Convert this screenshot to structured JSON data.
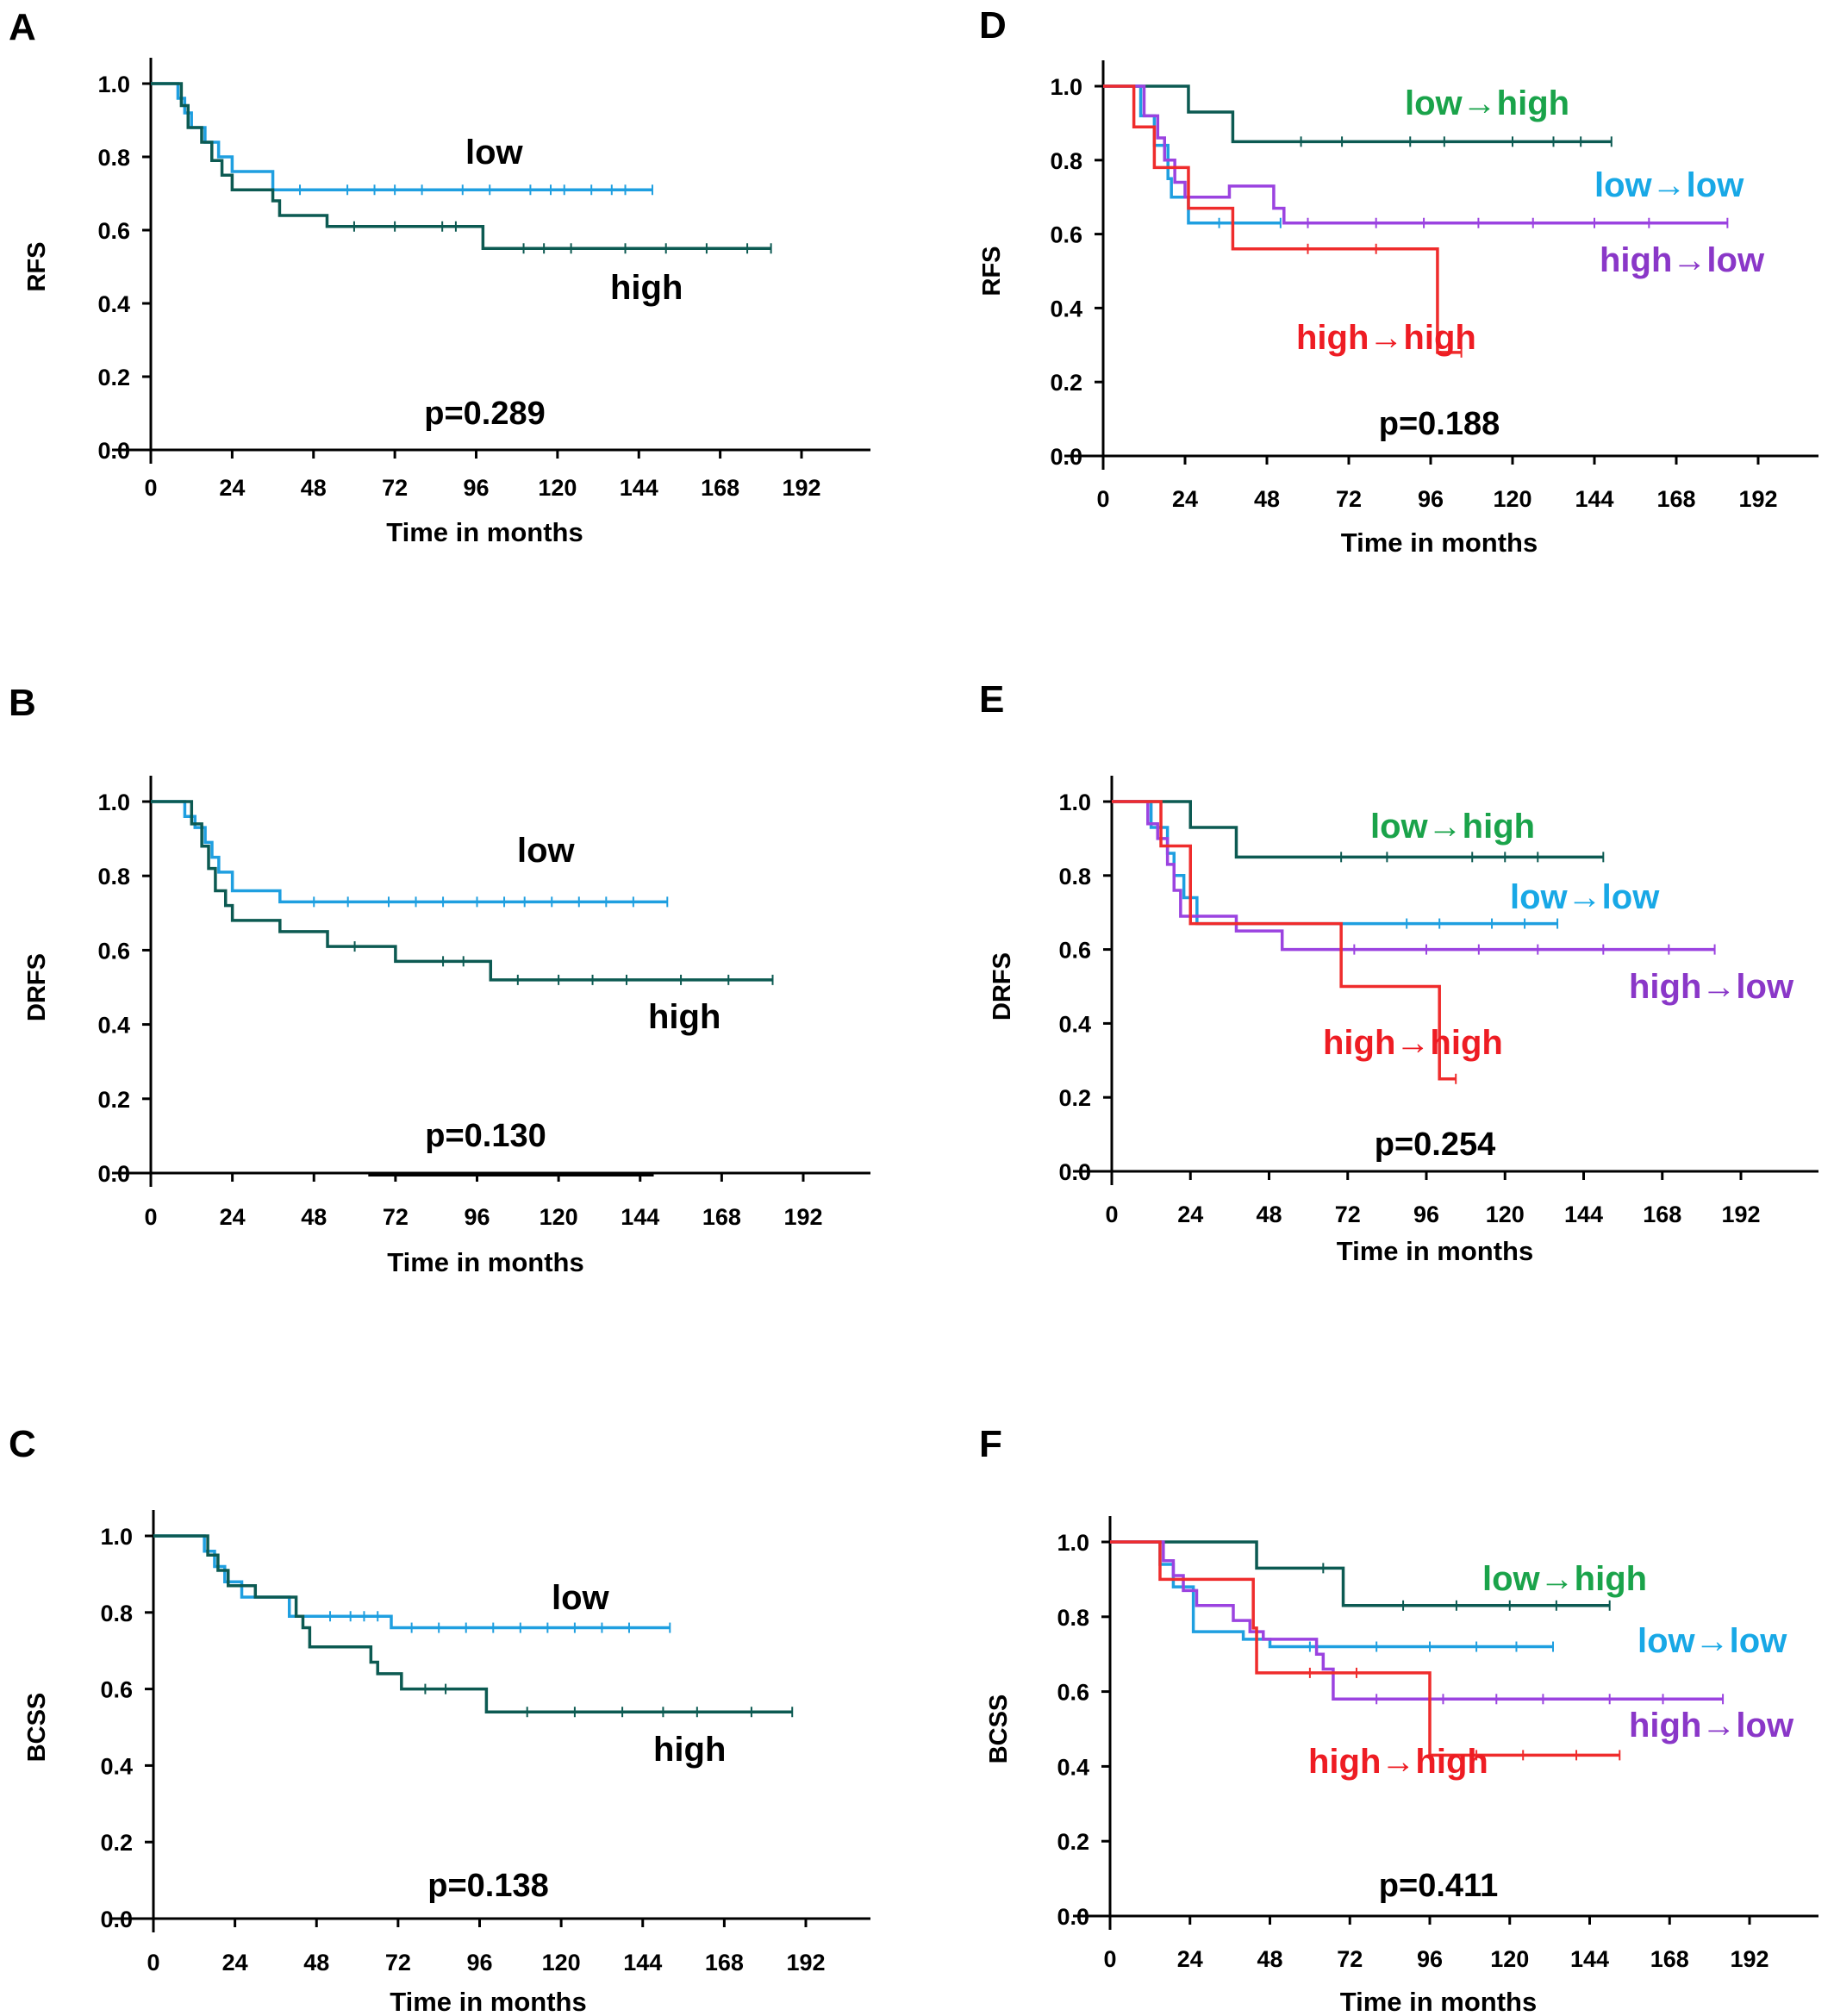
{
  "colors": {
    "dark_green": "#0c5a52",
    "blue": "#1f9fe0",
    "purple": "#9b43e0",
    "red": "#ef2c2c",
    "label_green": "#1aa34a",
    "label_blue": "#18a8e6",
    "label_purple": "#8a37c8",
    "label_red": "#ee1c23",
    "axis": "#000000"
  },
  "chart_data": [
    {
      "type": "line",
      "panel": "A",
      "xlabel": "Time in months",
      "ylabel": "RFS",
      "p_value": "p=0.289",
      "xlim": [
        0,
        192
      ],
      "ylim": [
        0,
        1
      ],
      "x_ticks": [
        "0",
        "24",
        "48",
        "72",
        "96",
        "120",
        "144",
        "168",
        "192"
      ],
      "y_ticks": [
        "0.0",
        "0.2",
        "0.4",
        "0.6",
        "0.8",
        "1.0"
      ],
      "series": [
        {
          "name": "low",
          "color_key": "blue",
          "steps": [
            [
              0,
              1.0
            ],
            [
              8,
              0.96
            ],
            [
              10,
              0.92
            ],
            [
              12,
              0.88
            ],
            [
              16,
              0.84
            ],
            [
              20,
              0.8
            ],
            [
              24,
              0.76
            ],
            [
              36,
              0.71
            ],
            [
              148,
              0.71
            ]
          ],
          "censor": [
            44,
            58,
            66,
            72,
            80,
            92,
            100,
            112,
            118,
            122,
            130,
            136,
            140,
            148
          ]
        },
        {
          "name": "high",
          "color_key": "dark_green",
          "steps": [
            [
              0,
              1.0
            ],
            [
              9,
              0.94
            ],
            [
              11,
              0.88
            ],
            [
              15,
              0.84
            ],
            [
              18,
              0.79
            ],
            [
              21,
              0.75
            ],
            [
              24,
              0.71
            ],
            [
              36,
              0.68
            ],
            [
              38,
              0.64
            ],
            [
              52,
              0.61
            ],
            [
              98,
              0.55
            ],
            [
              183,
              0.55
            ]
          ],
          "censor": [
            60,
            72,
            86,
            90,
            110,
            116,
            124,
            140,
            152,
            164,
            176,
            183
          ]
        }
      ]
    },
    {
      "type": "line",
      "panel": "B",
      "xlabel": "Time in months",
      "ylabel": "DRFS",
      "p_value": "p=0.130",
      "xlim": [
        0,
        192
      ],
      "ylim": [
        0,
        1
      ],
      "x_ticks": [
        "0",
        "24",
        "48",
        "72",
        "96",
        "120",
        "144",
        "168",
        "192"
      ],
      "y_ticks": [
        "0.0",
        "0.2",
        "0.4",
        "0.6",
        "0.8",
        "1.0"
      ],
      "series": [
        {
          "name": "low",
          "color_key": "blue",
          "steps": [
            [
              0,
              1.0
            ],
            [
              10,
              0.96
            ],
            [
              13,
              0.93
            ],
            [
              16,
              0.89
            ],
            [
              18,
              0.85
            ],
            [
              20,
              0.81
            ],
            [
              24,
              0.76
            ],
            [
              38,
              0.73
            ],
            [
              152,
              0.73
            ]
          ],
          "censor": [
            48,
            58,
            70,
            78,
            86,
            96,
            104,
            110,
            118,
            126,
            134,
            142,
            152
          ]
        },
        {
          "name": "high",
          "color_key": "dark_green",
          "steps": [
            [
              0,
              1.0
            ],
            [
              12,
              0.94
            ],
            [
              15,
              0.88
            ],
            [
              17,
              0.82
            ],
            [
              19,
              0.76
            ],
            [
              22,
              0.72
            ],
            [
              24,
              0.68
            ],
            [
              38,
              0.65
            ],
            [
              52,
              0.61
            ],
            [
              72,
              0.57
            ],
            [
              100,
              0.52
            ],
            [
              183,
              0.52
            ]
          ],
          "censor": [
            60,
            86,
            92,
            108,
            120,
            130,
            140,
            156,
            170,
            183
          ]
        }
      ]
    },
    {
      "type": "line",
      "panel": "C",
      "xlabel": "Time in months",
      "ylabel": "BCSS",
      "p_value": "p=0.138",
      "xlim": [
        0,
        192
      ],
      "ylim": [
        0,
        1
      ],
      "x_ticks": [
        "0",
        "24",
        "48",
        "72",
        "96",
        "120",
        "144",
        "168",
        "192"
      ],
      "y_ticks": [
        "0.0",
        "0.2",
        "0.4",
        "0.6",
        "0.8",
        "1.0"
      ],
      "series": [
        {
          "name": "low",
          "color_key": "blue",
          "steps": [
            [
              0,
              1.0
            ],
            [
              15,
              0.96
            ],
            [
              18,
              0.92
            ],
            [
              21,
              0.88
            ],
            [
              26,
              0.84
            ],
            [
              40,
              0.79
            ],
            [
              70,
              0.76
            ],
            [
              152,
              0.76
            ]
          ],
          "censor": [
            52,
            58,
            62,
            66,
            76,
            84,
            92,
            100,
            108,
            116,
            124,
            132,
            140,
            152
          ]
        },
        {
          "name": "high",
          "color_key": "dark_green",
          "steps": [
            [
              0,
              1.0
            ],
            [
              16,
              0.95
            ],
            [
              19,
              0.91
            ],
            [
              22,
              0.87
            ],
            [
              30,
              0.84
            ],
            [
              42,
              0.79
            ],
            [
              44,
              0.76
            ],
            [
              46,
              0.71
            ],
            [
              64,
              0.67
            ],
            [
              66,
              0.64
            ],
            [
              73,
              0.6
            ],
            [
              98,
              0.54
            ],
            [
              188,
              0.54
            ]
          ],
          "censor": [
            80,
            86,
            110,
            124,
            138,
            150,
            160,
            176,
            188
          ]
        }
      ]
    },
    {
      "type": "line",
      "panel": "D",
      "xlabel": "Time in months",
      "ylabel": "RFS",
      "p_value": "p=0.188",
      "xlim": [
        0,
        192
      ],
      "ylim": [
        0,
        1
      ],
      "x_ticks": [
        "0",
        "24",
        "48",
        "72",
        "96",
        "120",
        "144",
        "168",
        "192"
      ],
      "y_ticks": [
        "0.0",
        "0.2",
        "0.4",
        "0.6",
        "0.8",
        "1.0"
      ],
      "series": [
        {
          "name": "low→high",
          "color_key": "dark_green",
          "steps": [
            [
              0,
              1.0
            ],
            [
              25,
              0.93
            ],
            [
              38,
              0.85
            ],
            [
              149,
              0.85
            ]
          ],
          "censor": [
            58,
            70,
            90,
            100,
            120,
            132,
            140,
            149
          ]
        },
        {
          "name": "low→low",
          "color_key": "blue",
          "steps": [
            [
              0,
              1.0
            ],
            [
              11,
              0.92
            ],
            [
              15,
              0.84
            ],
            [
              19,
              0.75
            ],
            [
              20,
              0.7
            ],
            [
              25,
              0.63
            ],
            [
              52,
              0.63
            ]
          ],
          "censor": [
            34,
            52
          ]
        },
        {
          "name": "high→low",
          "color_key": "purple",
          "steps": [
            [
              0,
              1.0
            ],
            [
              12,
              0.92
            ],
            [
              16,
              0.86
            ],
            [
              18,
              0.8
            ],
            [
              21,
              0.74
            ],
            [
              24,
              0.7
            ],
            [
              37,
              0.73
            ],
            [
              50,
              0.67
            ],
            [
              53,
              0.63
            ],
            [
              183,
              0.63
            ]
          ],
          "censor": [
            60,
            80,
            94,
            110,
            126,
            144,
            160,
            183
          ]
        },
        {
          "name": "high→high",
          "color_key": "red",
          "steps": [
            [
              0,
              1.0
            ],
            [
              9,
              0.89
            ],
            [
              15,
              0.78
            ],
            [
              25,
              0.67
            ],
            [
              38,
              0.56
            ],
            [
              98,
              0.28
            ],
            [
              105,
              0.28
            ]
          ],
          "censor": [
            60,
            80,
            105
          ]
        }
      ]
    },
    {
      "type": "line",
      "panel": "E",
      "xlabel": "Time in months",
      "ylabel": "DRFS",
      "p_value": "p=0.254",
      "xlim": [
        0,
        192
      ],
      "ylim": [
        0,
        1
      ],
      "x_ticks": [
        "0",
        "24",
        "48",
        "72",
        "96",
        "120",
        "144",
        "168",
        "192"
      ],
      "y_ticks": [
        "0.0",
        "0.2",
        "0.4",
        "0.6",
        "0.8",
        "1.0"
      ],
      "series": [
        {
          "name": "low→high",
          "color_key": "dark_green",
          "steps": [
            [
              0,
              1.0
            ],
            [
              24,
              0.93
            ],
            [
              38,
              0.85
            ],
            [
              150,
              0.85
            ]
          ],
          "censor": [
            70,
            84,
            110,
            120,
            130,
            150
          ]
        },
        {
          "name": "low→low",
          "color_key": "blue",
          "steps": [
            [
              0,
              1.0
            ],
            [
              12,
              0.93
            ],
            [
              17,
              0.86
            ],
            [
              19,
              0.8
            ],
            [
              22,
              0.74
            ],
            [
              26,
              0.67
            ],
            [
              136,
              0.67
            ]
          ],
          "censor": [
            90,
            100,
            116,
            126,
            136
          ]
        },
        {
          "name": "high→low",
          "color_key": "purple",
          "steps": [
            [
              0,
              1.0
            ],
            [
              11,
              0.94
            ],
            [
              14,
              0.9
            ],
            [
              17,
              0.83
            ],
            [
              19,
              0.76
            ],
            [
              21,
              0.69
            ],
            [
              38,
              0.65
            ],
            [
              52,
              0.6
            ],
            [
              184,
              0.6
            ]
          ],
          "censor": [
            74,
            96,
            112,
            130,
            150,
            170,
            184
          ]
        },
        {
          "name": "high→high",
          "color_key": "red",
          "steps": [
            [
              0,
              1.0
            ],
            [
              15,
              0.88
            ],
            [
              24,
              0.67
            ],
            [
              70,
              0.5
            ],
            [
              100,
              0.25
            ],
            [
              105,
              0.25
            ]
          ],
          "censor": [
            105
          ]
        }
      ]
    },
    {
      "type": "line",
      "panel": "F",
      "xlabel": "Time in months",
      "ylabel": "BCSS",
      "p_value": "p=0.411",
      "xlim": [
        0,
        192
      ],
      "ylim": [
        0,
        1
      ],
      "x_ticks": [
        "0",
        "24",
        "48",
        "72",
        "96",
        "120",
        "144",
        "168",
        "192"
      ],
      "y_ticks": [
        "0.0",
        "0.2",
        "0.4",
        "0.6",
        "0.8",
        "1.0"
      ],
      "series": [
        {
          "name": "low→high",
          "color_key": "dark_green",
          "steps": [
            [
              0,
              1.0
            ],
            [
              44,
              0.93
            ],
            [
              70,
              0.83
            ],
            [
              150,
              0.83
            ]
          ],
          "censor": [
            64,
            88,
            104,
            120,
            134,
            150
          ]
        },
        {
          "name": "low→low",
          "color_key": "blue",
          "steps": [
            [
              0,
              1.0
            ],
            [
              15,
              0.94
            ],
            [
              19,
              0.88
            ],
            [
              25,
              0.76
            ],
            [
              40,
              0.74
            ],
            [
              48,
              0.72
            ],
            [
              133,
              0.72
            ]
          ],
          "censor": [
            60,
            80,
            96,
            110,
            122,
            133
          ]
        },
        {
          "name": "high→low",
          "color_key": "purple",
          "steps": [
            [
              0,
              1.0
            ],
            [
              16,
              0.95
            ],
            [
              19,
              0.91
            ],
            [
              22,
              0.87
            ],
            [
              26,
              0.83
            ],
            [
              37,
              0.79
            ],
            [
              42,
              0.76
            ],
            [
              46,
              0.74
            ],
            [
              62,
              0.7
            ],
            [
              64,
              0.66
            ],
            [
              67,
              0.58
            ],
            [
              184,
              0.58
            ]
          ],
          "censor": [
            80,
            100,
            116,
            130,
            150,
            166,
            184
          ]
        },
        {
          "name": "high→high",
          "color_key": "red",
          "steps": [
            [
              0,
              1.0
            ],
            [
              15,
              0.9
            ],
            [
              43,
              0.77
            ],
            [
              44,
              0.65
            ],
            [
              96,
              0.43
            ],
            [
              153,
              0.43
            ]
          ],
          "censor": [
            60,
            74,
            110,
            124,
            140,
            153
          ]
        }
      ]
    }
  ]
}
